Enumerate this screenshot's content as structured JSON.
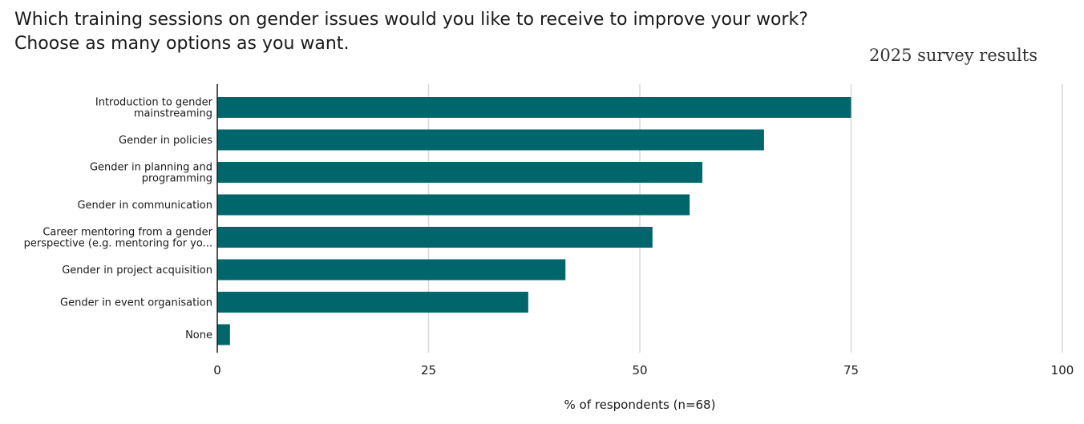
{
  "chart_data": {
    "type": "bar",
    "orientation": "horizontal",
    "title_lines": [
      "Which training sessions on gender issues would you like to receive to improve your work?",
      "Choose as many options as you want."
    ],
    "subtitle": "2025 survey results",
    "xlabel": "% of respondents (n=68)",
    "ylabel": "",
    "xlim": [
      0,
      100
    ],
    "xticks": [
      0,
      25,
      50,
      75,
      100
    ],
    "grid": true,
    "bar_color": "#00666b",
    "categories": [
      [
        "Introduction to gender",
        "mainstreaming"
      ],
      [
        "Gender in policies"
      ],
      [
        "Gender in planning and",
        "programming"
      ],
      [
        "Gender in communication"
      ],
      [
        "Career mentoring from a gender",
        "perspective (e.g. mentoring for yo..."
      ],
      [
        "Gender in project acquisition"
      ],
      [
        "Gender in event organisation"
      ],
      [
        "None"
      ]
    ],
    "values": [
      75.0,
      64.7,
      57.4,
      55.9,
      51.5,
      41.2,
      36.8,
      1.5
    ]
  }
}
